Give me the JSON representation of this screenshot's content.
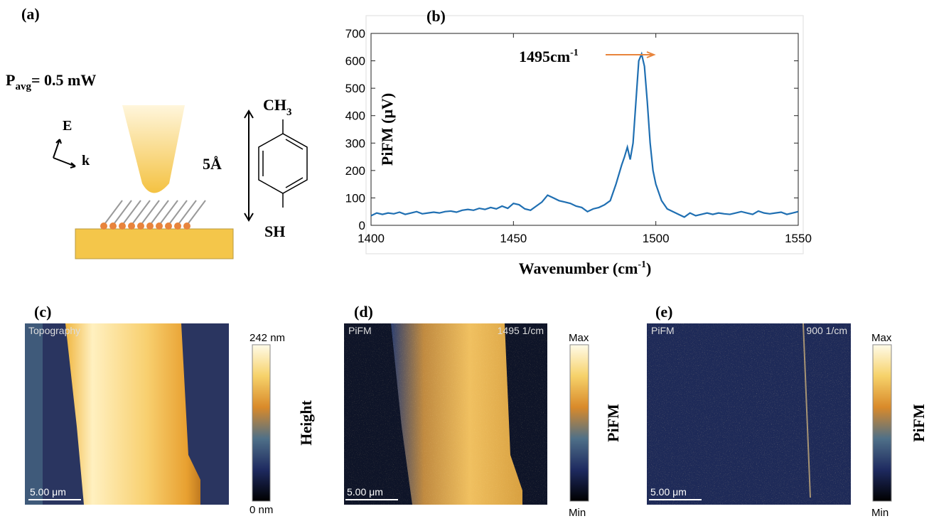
{
  "panel_a": {
    "label": "(a)",
    "power": {
      "symbol": "P",
      "sub": "avg",
      "rest": "= 0.5 mW"
    },
    "field": "E",
    "wavevector": "k",
    "length": "5Å",
    "top_group": {
      "text": "CH",
      "sub": "3"
    },
    "bottom_group": "SH"
  },
  "chart_data": {
    "type": "line",
    "panel_label": "(b)",
    "color": "#1f6fb2",
    "x": [
      1400,
      1402,
      1404,
      1406,
      1408,
      1410,
      1412,
      1414,
      1416,
      1418,
      1420,
      1422,
      1424,
      1426,
      1428,
      1430,
      1432,
      1434,
      1436,
      1438,
      1440,
      1442,
      1444,
      1446,
      1448,
      1450,
      1452,
      1454,
      1456,
      1458,
      1460,
      1462,
      1464,
      1466,
      1468,
      1470,
      1472,
      1474,
      1476,
      1478,
      1480,
      1482,
      1484,
      1486,
      1488,
      1489,
      1490,
      1491,
      1492,
      1493,
      1494,
      1495,
      1496,
      1497,
      1498,
      1499,
      1500,
      1502,
      1504,
      1506,
      1508,
      1510,
      1512,
      1514,
      1516,
      1518,
      1520,
      1522,
      1524,
      1526,
      1528,
      1530,
      1532,
      1534,
      1536,
      1538,
      1540,
      1542,
      1544,
      1546,
      1548,
      1550
    ],
    "values": [
      35,
      45,
      40,
      45,
      42,
      48,
      40,
      45,
      50,
      42,
      45,
      48,
      45,
      50,
      52,
      48,
      55,
      58,
      55,
      62,
      58,
      65,
      60,
      70,
      62,
      80,
      75,
      60,
      55,
      70,
      85,
      110,
      100,
      90,
      85,
      80,
      70,
      65,
      50,
      60,
      65,
      75,
      90,
      150,
      220,
      250,
      285,
      240,
      300,
      450,
      600,
      625,
      580,
      450,
      300,
      200,
      150,
      90,
      60,
      50,
      40,
      30,
      45,
      35,
      40,
      45,
      40,
      45,
      42,
      40,
      45,
      50,
      45,
      40,
      52,
      45,
      42,
      45,
      48,
      40,
      45,
      50
    ],
    "xlim": [
      1400,
      1550
    ],
    "ylim": [
      0,
      700
    ],
    "xticks": [
      1400,
      1450,
      1500,
      1550
    ],
    "yticks": [
      0,
      100,
      200,
      300,
      400,
      500,
      600,
      700
    ],
    "ylabel": "PiFM (μV)",
    "xlabel": {
      "text": "Wavenumber (cm",
      "sup": "-1",
      "close": ")"
    },
    "annotation": {
      "text": "1495cm",
      "sup": "-1"
    }
  },
  "panel_c": {
    "label": "(c)",
    "mode": "Topography",
    "scale": "5.00 μm",
    "bar_max": "242 nm",
    "bar_min": "0 nm",
    "bar_title": "Height"
  },
  "panel_d": {
    "label": "(d)",
    "mode": "PiFM",
    "wavenumber": "1495 1/cm",
    "scale": "5.00 μm",
    "bar_max": "Max",
    "bar_min": "Min",
    "bar_title": "PiFM"
  },
  "panel_e": {
    "label": "(e)",
    "mode": "PiFM",
    "wavenumber": "900 1/cm",
    "scale": "5.00 μm",
    "bar_max": "Max",
    "bar_min": "Min",
    "bar_title": "PiFM"
  }
}
